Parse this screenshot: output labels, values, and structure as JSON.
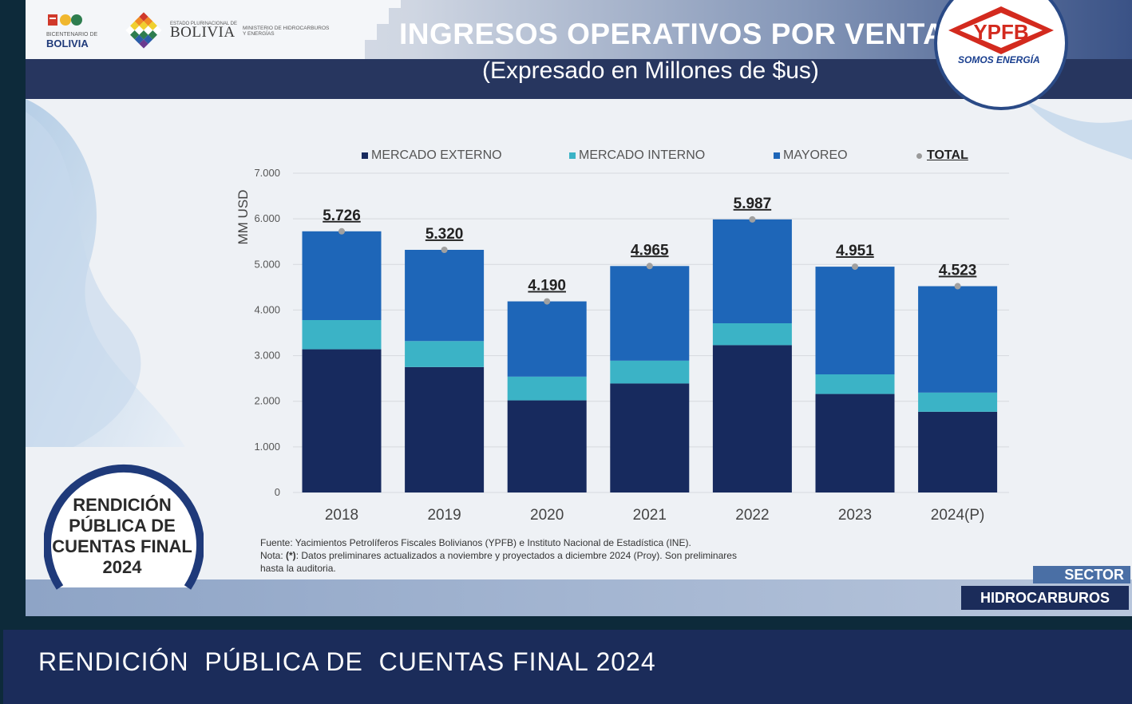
{
  "header": {
    "title": "INGRESOS OPERATIVOS POR VENTA",
    "subtitle": "(Expresado en Millones de $us)"
  },
  "logos": {
    "bicentenario_label": "BICENTENARIO DE",
    "bicentenario_word": "BOLIVIA",
    "estado_label": "ESTADO PLURINACIONAL DE",
    "bolivia_word": "BOLIVIA",
    "ministerio": "MINISTERIO DE HIDROCARBUROS Y ENERGÍAS",
    "ypfb_word": "YPFB",
    "ypfb_tagline": "SOMOS ENERGÍA"
  },
  "badge": {
    "text_lines": [
      "RENDICIÓN",
      "PÚBLICA DE",
      "CUENTAS FINAL",
      "2024"
    ]
  },
  "chart_data": {
    "type": "bar",
    "stacked": true,
    "categories": [
      "2018",
      "2019",
      "2020",
      "2021",
      "2022",
      "2023",
      "2024(P)"
    ],
    "series": [
      {
        "name": "MERCADO EXTERNO",
        "color": "#172a5e",
        "values": [
          3140,
          2750,
          2020,
          2390,
          3230,
          2160,
          1770
        ]
      },
      {
        "name": "MERCADO INTERNO",
        "color": "#3bb3c6",
        "values": [
          640,
          570,
          520,
          500,
          480,
          430,
          420
        ]
      },
      {
        "name": "MAYOREO",
        "color": "#1e66b8",
        "values": [
          1946,
          2000,
          1650,
          2075,
          2277,
          2361,
          2333
        ]
      }
    ],
    "total": {
      "name": "TOTAL",
      "labels": [
        "5.726",
        "5.320",
        "4.190",
        "4.965",
        "5.987",
        "4.951",
        "4.523"
      ],
      "values": [
        5726,
        5320,
        4190,
        4965,
        5987,
        4951,
        4523
      ]
    },
    "ylabel": "MM USD",
    "yticks": [
      "0",
      "1.000",
      "2.000",
      "3.000",
      "4.000",
      "5.000",
      "6.000",
      "7.000"
    ],
    "ylim": [
      0,
      7000
    ],
    "grid": true,
    "legend": "top"
  },
  "notes": {
    "fuente": "Fuente: Yacimientos Petrolíferos Fiscales Bolivianos (YPFB) e Instituto Nacional de Estadística (INE).",
    "nota_prefix": "Nota: ",
    "nota_mark": "(*)",
    "nota_text": ": Datos preliminares actualizados a noviembre y proyectados a diciembre 2024 (Proy). Son preliminares hasta la auditoria."
  },
  "sector": {
    "label": "SECTOR",
    "name": "HIDROCARBUROS"
  },
  "footer": {
    "text": "RENDICIÓN  PÚBLICA DE  CUENTAS FINAL 2024"
  }
}
